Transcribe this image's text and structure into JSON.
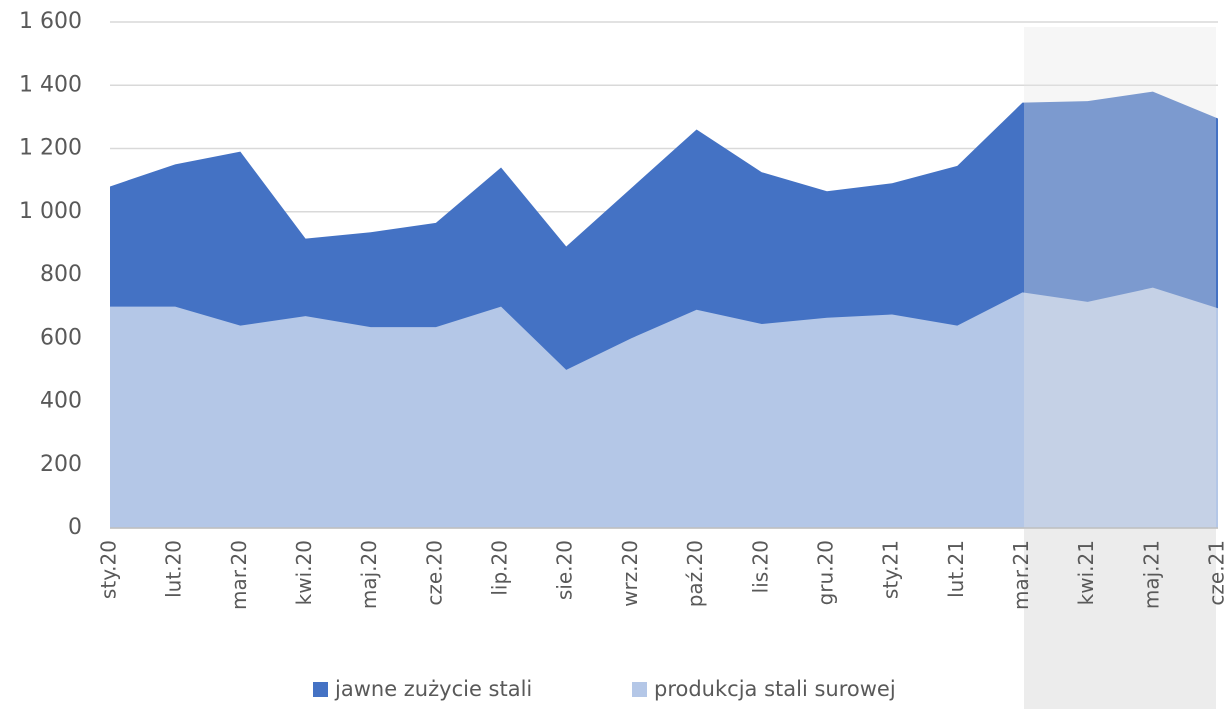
{
  "chart_data": {
    "type": "area",
    "categories": [
      "sty.20",
      "lut.20",
      "mar.20",
      "kwi.20",
      "maj.20",
      "cze.20",
      "lip.20",
      "sie.20",
      "wrz.20",
      "paź.20",
      "lis.20",
      "gru.20",
      "sty.21",
      "lut.21",
      "mar.21",
      "kwi.21",
      "maj.21",
      "cze.21"
    ],
    "series": [
      {
        "name": "jawne zużycie stali",
        "color": "#4472c4",
        "values": [
          1080,
          1150,
          1190,
          915,
          935,
          965,
          1140,
          890,
          1075,
          1260,
          1125,
          1065,
          1090,
          1145,
          1345,
          1350,
          1380,
          1295
        ]
      },
      {
        "name": "produkcja stali surowej",
        "color": "#b4c7e7",
        "values": [
          700,
          700,
          640,
          670,
          635,
          635,
          700,
          500,
          600,
          690,
          645,
          665,
          675,
          640,
          745,
          715,
          760,
          695
        ]
      }
    ],
    "ylim": [
      0,
      1600
    ],
    "yticks": [
      0,
      200,
      400,
      600,
      800,
      {
        "value": 1000,
        "label": "1 000"
      },
      {
        "value": 1200,
        "label": "1 200"
      },
      {
        "value": 1400,
        "label": "1 400"
      },
      {
        "value": 1600,
        "label": "1 600"
      }
    ],
    "grid": true,
    "legend": "bottom"
  }
}
